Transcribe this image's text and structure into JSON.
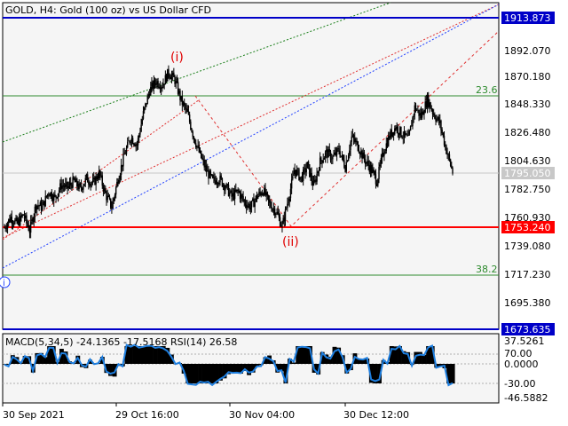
{
  "header": {
    "title": "GOLD, H4:  Gold (100 oz) vs US Dollar CFD",
    "macd_label": "MACD(5,34,5) -24.1365 -17.5168 RSI(14) 26.58"
  },
  "colors": {
    "background": "#f5f5f5",
    "candles": "#000000",
    "wave_labels": "#e00000",
    "level_red": "#ff0000",
    "level_blue": "#0000c8",
    "fib_green": "#2e8b2e",
    "channel_blue": "#1f3fff",
    "channel_red": "#e03030",
    "channel_green": "#1a7f1a",
    "macd_signal": "#1e7fe0",
    "current_price_box": "#c8c8c8"
  },
  "chart_data": {
    "type": "candlestick",
    "symbol": "GOLD",
    "timeframe": "H4",
    "price_range": [
      1673.635,
      1913.873
    ],
    "price_ticks": [
      "1892.070",
      "1870.180",
      "1848.330",
      "1826.480",
      "1804.630",
      "1782.750",
      "1760.930",
      "1739.080",
      "1717.230",
      "1695.380"
    ],
    "time_ticks": [
      "30 Sep 2021",
      "29 Oct 16:00",
      "30 Nov 04:00",
      "30 Dec 12:00"
    ],
    "close_path": [
      [
        "30 Sep 2021",
        1752
      ],
      [
        null,
        1760
      ],
      [
        null,
        1755
      ],
      [
        null,
        1762
      ],
      [
        null,
        1750
      ],
      [
        null,
        1770
      ],
      [
        null,
        1768
      ],
      [
        null,
        1780
      ],
      [
        null,
        1775
      ],
      [
        null,
        1785
      ],
      [
        null,
        1783
      ],
      [
        null,
        1788
      ],
      [
        null,
        1782
      ],
      [
        null,
        1790
      ],
      [
        null,
        1786
      ],
      [
        null,
        1794
      ],
      [
        null,
        1778
      ],
      [
        null,
        1768
      ],
      [
        null,
        1790
      ],
      [
        null,
        1808
      ],
      [
        null,
        1822
      ],
      [
        null,
        1816
      ],
      [
        null,
        1840
      ],
      [
        null,
        1858
      ],
      [
        null,
        1865
      ],
      [
        null,
        1862
      ],
      [
        null,
        1872
      ],
      [
        null,
        1866
      ],
      [
        null,
        1850
      ],
      [
        null,
        1840
      ],
      [
        null,
        1822
      ],
      [
        null,
        1808
      ],
      [
        null,
        1796
      ],
      [
        null,
        1788
      ],
      [
        null,
        1790
      ],
      [
        null,
        1784
      ],
      [
        null,
        1776
      ],
      [
        null,
        1780
      ],
      [
        null,
        1772
      ],
      [
        null,
        1768
      ],
      [
        null,
        1776
      ],
      [
        null,
        1781
      ],
      [
        null,
        1770
      ],
      [
        null,
        1765
      ],
      [
        null,
        1753
      ],
      [
        null,
        1775
      ],
      [
        null,
        1797
      ],
      [
        null,
        1790
      ],
      [
        null,
        1800
      ],
      [
        null,
        1784
      ],
      [
        null,
        1803
      ],
      [
        null,
        1810
      ],
      [
        null,
        1806
      ],
      [
        null,
        1812
      ],
      [
        null,
        1799
      ],
      [
        null,
        1822
      ],
      [
        null,
        1815
      ],
      [
        null,
        1805
      ],
      [
        null,
        1798
      ],
      [
        null,
        1788
      ],
      [
        null,
        1810
      ],
      [
        null,
        1823
      ],
      [
        null,
        1830
      ],
      [
        null,
        1824
      ],
      [
        null,
        1820
      ],
      [
        null,
        1845
      ],
      [
        null,
        1838
      ],
      [
        null,
        1851
      ],
      [
        null,
        1840
      ],
      [
        null,
        1832
      ],
      [
        null,
        1812
      ],
      [
        null,
        1795
      ]
    ],
    "levels": [
      {
        "price": 1913.873,
        "label": "1913.873",
        "color": "#0000c8",
        "style": "solid"
      },
      {
        "price": 1753.24,
        "label": "1753.240",
        "color": "#ff0000",
        "style": "solid"
      },
      {
        "price": 1673.635,
        "label": "1673.635",
        "color": "#0000c8",
        "style": "solid"
      }
    ],
    "current_price": "1795.050",
    "fib_lines": [
      {
        "label": "23.6",
        "price": 1853.3
      },
      {
        "label": "38.2",
        "price": 1718.7
      }
    ],
    "wave_labels": [
      {
        "text": "(i)",
        "price": 1877
      },
      {
        "text": "(ii)",
        "price": 1753
      }
    ],
    "circle_label": "i",
    "macd": {
      "ticks": [
        "37.5261",
        "70.00",
        "0.0000",
        "-30.00",
        "-46.5882"
      ],
      "range": [
        -46.5882,
        37.5261
      ]
    }
  }
}
